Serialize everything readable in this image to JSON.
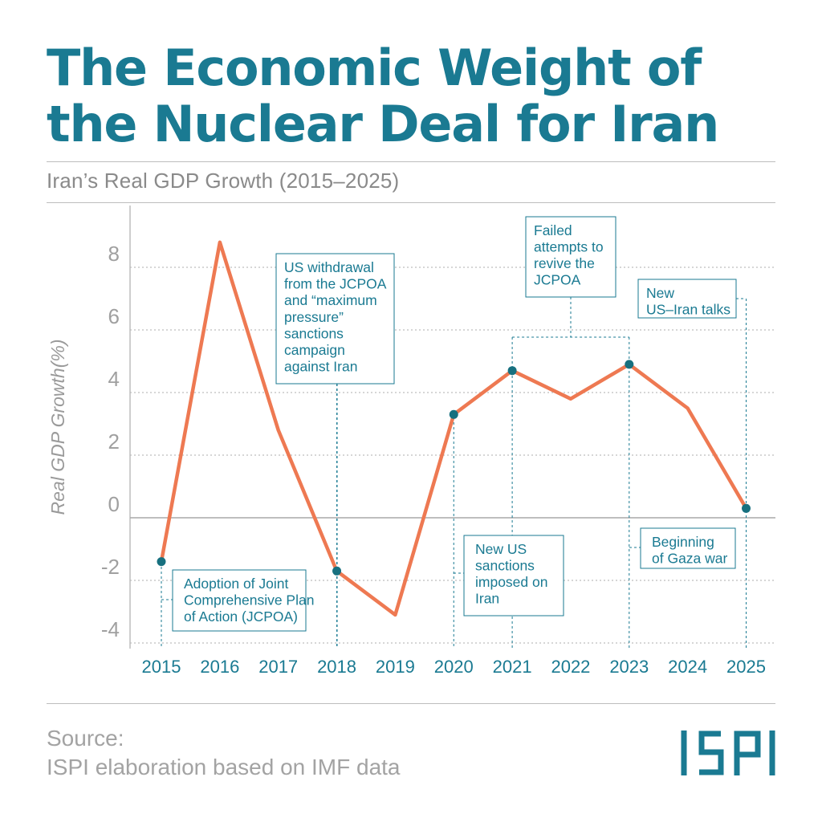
{
  "title_line1": "The Economic Weight of",
  "title_line2": "the Nuclear Deal for Iran",
  "subtitle": "Iran’s Real GDP Growth (2015–2025)",
  "source_label": "Source:",
  "source_text": "ISPI elaboration based on IMF data",
  "logo_text": "ISPI",
  "colors": {
    "accent": "#1a7a92",
    "line": "#ee7952",
    "marker": "#17707f",
    "grid": "#bdbdbd",
    "annotation_text": "#1a7a92"
  },
  "chart_data": {
    "type": "line",
    "title": "Iran’s Real GDP Growth (2015–2025)",
    "xlabel": "",
    "ylabel": "Real GDP Growth(%)",
    "ylim": [
      -4,
      10
    ],
    "grid": true,
    "yticks": [
      -4,
      -2,
      0,
      2,
      4,
      6,
      8
    ],
    "ytick_labels": [
      "-4",
      "-2",
      "0",
      "2",
      "4",
      "6",
      "8"
    ],
    "x": [
      "2015",
      "2016",
      "2017",
      "2018",
      "2019",
      "2020",
      "2021",
      "2022",
      "2023",
      "2024",
      "2025"
    ],
    "series": [
      {
        "values": [
          -1.4,
          8.8,
          2.8,
          -1.7,
          -3.1,
          3.3,
          4.7,
          3.8,
          4.9,
          3.5,
          0.3
        ]
      }
    ],
    "markers": [
      "2015",
      "2018",
      "2020",
      "2021",
      "2023",
      "2025"
    ],
    "annotations": [
      {
        "year": "2015",
        "lines": [
          "Adoption of Joint",
          "Comprehensive Plan",
          "of Action (JCPOA)"
        ]
      },
      {
        "year": "2018",
        "lines": [
          "US withdrawal",
          "from the JCPOA",
          "and “maximum",
          "pressure”",
          "sanctions",
          "campaign",
          "against Iran"
        ]
      },
      {
        "year": "2020",
        "lines": [
          "New US",
          "sanctions",
          "imposed on",
          "Iran"
        ]
      },
      {
        "year": "2021-2023",
        "lines": [
          "Failed",
          "attempts to",
          "revive the",
          "JCPOA"
        ]
      },
      {
        "year": "2023",
        "lines": [
          "Beginning",
          "of Gaza war"
        ]
      },
      {
        "year": "2025",
        "lines": [
          "New",
          "US–Iran talks"
        ]
      }
    ]
  }
}
